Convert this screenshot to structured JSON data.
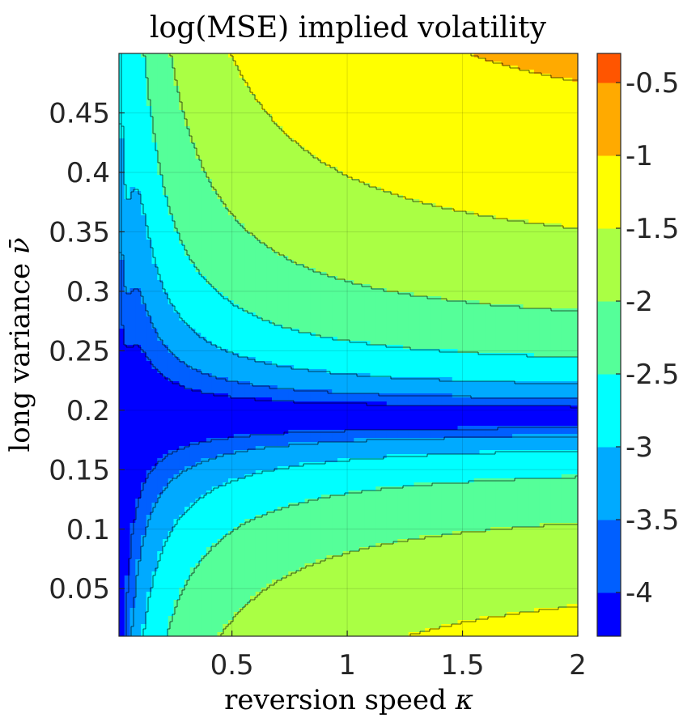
{
  "chart_data": {
    "type": "contourf",
    "title": "log(MSE) implied volatility",
    "xlabel_text": "reversion speed",
    "xlabel_symbol": "κ",
    "ylabel_text": "long variance",
    "ylabel_symbol": "ν̄",
    "xlim": [
      0.01,
      2
    ],
    "ylim": [
      0.01,
      0.5
    ],
    "x_ticks": [
      0.5,
      1,
      1.5,
      2
    ],
    "x_tick_labels": [
      "0.5",
      "1",
      "1.5",
      "2"
    ],
    "y_ticks": [
      0.05,
      0.1,
      0.15,
      0.2,
      0.25,
      0.3,
      0.35,
      0.4,
      0.45
    ],
    "y_tick_labels": [
      "0.05",
      "0.1",
      "0.15",
      "0.2",
      "0.25",
      "0.3",
      "0.35",
      "0.4",
      "0.45"
    ],
    "optimum_nu": 0.195,
    "grid": true,
    "colorbar": {
      "clim": [
        -4.3,
        -0.3
      ],
      "levels": [
        -4.5,
        -4,
        -3.5,
        -3,
        -2.5,
        -2,
        -1.5,
        -1,
        -0.5
      ],
      "ticks": [
        -4,
        -3.5,
        -3,
        -2.5,
        -2,
        -1.5,
        -1,
        -0.5
      ],
      "tick_labels": [
        "-4",
        "-3.5",
        "-3",
        "-2.5",
        "-2",
        "-1.5",
        "-1",
        "-0.5"
      ],
      "colors": [
        "#00009f",
        "#0000ff",
        "#005fff",
        "#00aaff",
        "#00ffff",
        "#55ff99",
        "#aaff44",
        "#ffff00",
        "#ffaa00",
        "#ff5500"
      ]
    }
  }
}
